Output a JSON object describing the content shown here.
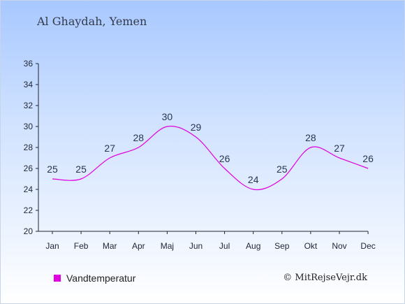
{
  "title": "Al Ghaydah, Yemen",
  "copyright": "© MitRejseVejr.dk",
  "colors": {
    "line": "#e000e0",
    "axis": "#1f2533",
    "label": "#2a3550"
  },
  "chart_data": {
    "type": "line",
    "categories": [
      "Jan",
      "Feb",
      "Mar",
      "Apr",
      "Maj",
      "Jun",
      "Jul",
      "Aug",
      "Sep",
      "Okt",
      "Nov",
      "Dec"
    ],
    "series": [
      {
        "name": "Vandtemperatur",
        "values": [
          25,
          25,
          27,
          28,
          30,
          29,
          26,
          24,
          25,
          28,
          27,
          26
        ]
      }
    ],
    "ylim": [
      20,
      36
    ],
    "yticks": [
      20,
      22,
      24,
      26,
      28,
      30,
      32,
      34,
      36
    ],
    "grid": false,
    "legend": "bottom-left"
  }
}
